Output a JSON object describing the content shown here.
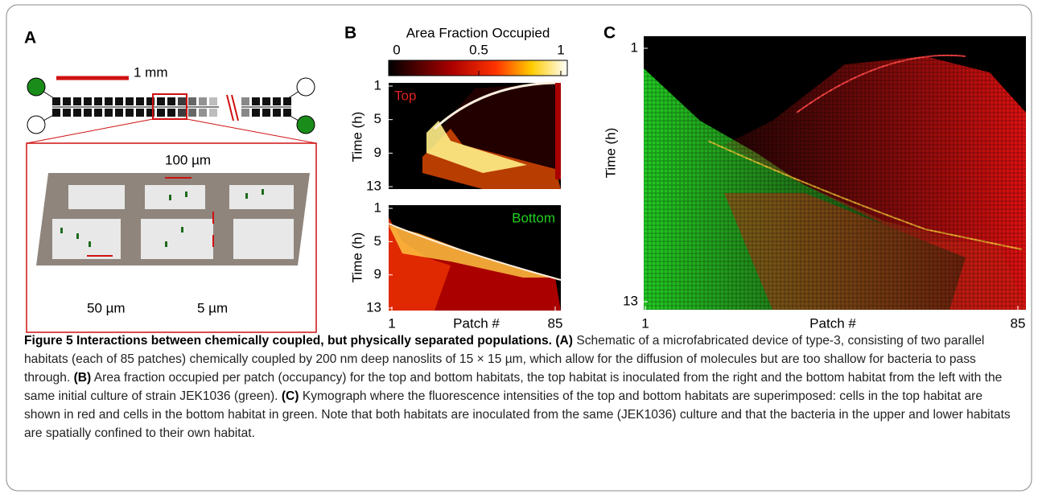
{
  "panel_a": {
    "label": "A",
    "scale_bar": "1 mm",
    "dims": [
      "100 µm",
      "50 µm",
      "5 µm"
    ]
  },
  "panel_b": {
    "label": "B",
    "colorbar": {
      "title": "Area Fraction Occupied",
      "lim": [
        0,
        1
      ],
      "ticks": [
        0,
        0.5,
        1
      ]
    },
    "plots": [
      "Top",
      "Bottom"
    ],
    "ylabel": "Time (h)",
    "ylim": [
      1,
      13
    ],
    "yticks": [
      1,
      5,
      9,
      13
    ],
    "xlabel": "Patch #",
    "xlim": [
      1,
      85
    ],
    "xticks": [
      1,
      85
    ]
  },
  "panel_c": {
    "label": "C",
    "ylabel": "Time (h)",
    "ylim": [
      1,
      13
    ],
    "yticks": [
      1,
      13
    ],
    "xlabel": "Patch #",
    "xlim": [
      1,
      85
    ],
    "xticks": [
      1,
      85
    ]
  },
  "caption": {
    "title": "Figure 5 Interactions between chemically coupled, but physically separated populations.",
    "parts": [
      {
        "tag": "(A)",
        "text": "Schematic of a microfabricated device of type-3, consisting of two parallel habitats (each of 85 patches) chemically coupled by 200 nm deep nanoslits of 15 × 15 µm, which allow for the diffusion of molecules but are too shallow for bacteria to pass through."
      },
      {
        "tag": "(B)",
        "text": "Area fraction occupied per patch (occupancy) for the top and bottom habitats, the top habitat is inoculated from the right and the bottom habitat from the left with the same initial culture of strain JEK1036 (green)."
      },
      {
        "tag": "(C)",
        "text": "Kymograph where the fluorescence intensities of the top and bottom habitats are superimposed: cells in the top habitat are shown in red and cells in the bottom habitat in green. Note that both habitats are inoculated from the same (JEK1036) culture and that the bacteria in the upper and lower habitats are spatially confined to their own habitat."
      }
    ]
  }
}
